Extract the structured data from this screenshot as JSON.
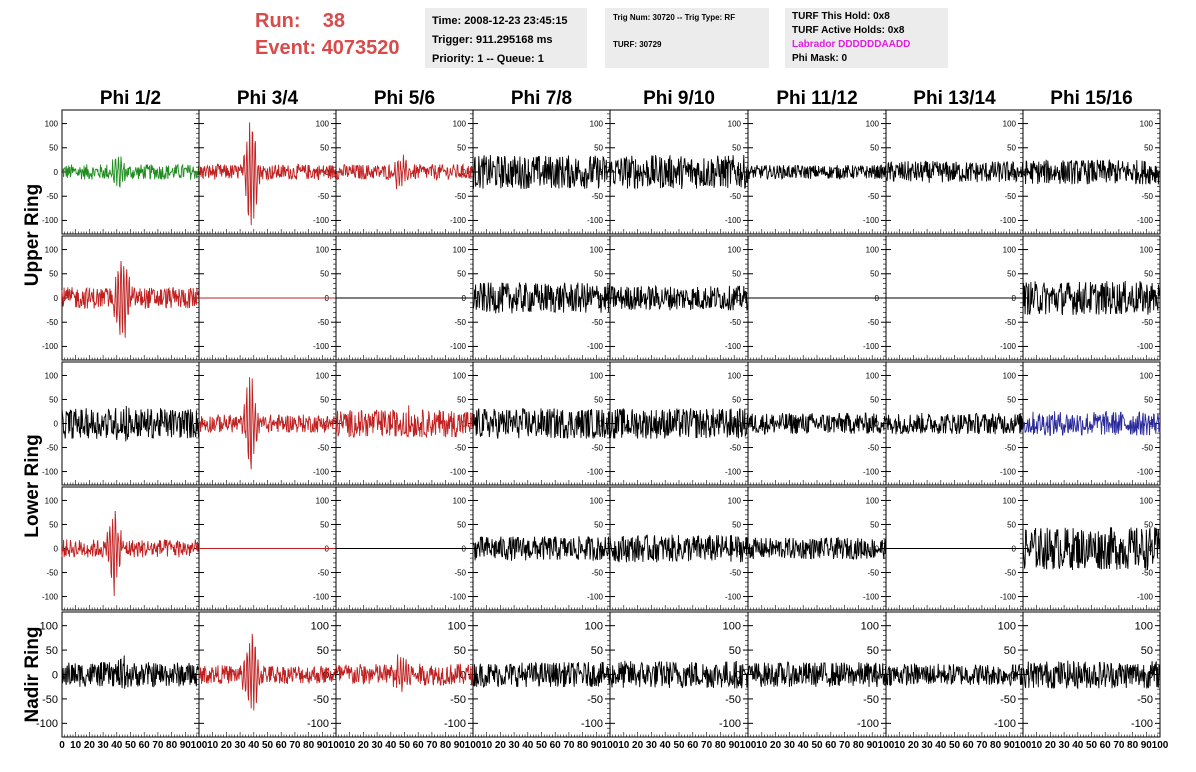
{
  "header": {
    "run_label": "Run:",
    "run_value": "38",
    "event_label": "Event:",
    "event_value": "4073520"
  },
  "info_box_1": {
    "time": "Time: 2008-12-23 23:45:15",
    "trigger": "Trigger: 911.295168 ms",
    "priority": "Priority: 1 -- Queue: 1"
  },
  "info_box_2": {
    "trig": "Trig Num: 30720 -- Trig Type: RF",
    "turf": "TURF: 30729"
  },
  "info_box_3": {
    "hold": "TURF This Hold: 0x8",
    "active": "TURF Active Holds: 0x8",
    "labrador": "Labrador DDDDDDAADD",
    "phimask": "Phi Mask: 0"
  },
  "colors": {
    "run_text": "#d94a4a",
    "labrador_text": "#e01ee0",
    "trace_black": "#000000",
    "trace_red": "#c02020",
    "trace_green": "#1e8c1e",
    "trace_blue": "#2a2a9c",
    "info_bg": "#ececec"
  },
  "chart_data": {
    "type": "line",
    "columns": [
      "Phi 1/2",
      "Phi 3/4",
      "Phi 5/6",
      "Phi 7/8",
      "Phi 9/10",
      "Phi 11/12",
      "Phi 13/14",
      "Phi 15/16"
    ],
    "rows": [
      "Upper Ring",
      "Lower Ring",
      "Nadir Ring"
    ],
    "xlim": [
      0,
      100
    ],
    "ylim": [
      -128,
      128
    ],
    "x_ticks": [
      0,
      10,
      20,
      30,
      40,
      50,
      60,
      70,
      80,
      90,
      100
    ],
    "x_tick_labels": [
      "0",
      "10",
      "20",
      "30",
      "40",
      "50",
      "60",
      "70",
      "80",
      "90",
      "100"
    ],
    "y_ticks": [
      -100,
      -50,
      0,
      50,
      100
    ],
    "y_tick_labels": [
      "-100",
      "-50",
      "0",
      "50",
      "100"
    ],
    "panels": [
      [
        {
          "color": "green",
          "amp": 10,
          "pulse": 40,
          "center": 40
        },
        {
          "color": "red",
          "amp": 10,
          "pulse": 125,
          "center": 38
        },
        {
          "color": "red",
          "amp": 10,
          "pulse": 40,
          "center": 46
        },
        {
          "color": "black",
          "amp": 22,
          "pulse": 0,
          "center": 50
        },
        {
          "color": "black",
          "amp": 22,
          "pulse": 0,
          "center": 50
        },
        {
          "color": "black",
          "amp": 9,
          "pulse": 0,
          "center": 50
        },
        {
          "color": "black",
          "amp": 14,
          "pulse": 0,
          "center": 50
        },
        {
          "color": "black",
          "amp": 16,
          "pulse": 0,
          "center": 50
        }
      ],
      [
        {
          "color": "red",
          "amp": 14,
          "pulse": 110,
          "center": 44
        },
        {
          "color": "red",
          "amp": 0,
          "pulse": 0,
          "center": 50
        },
        {
          "color": "black",
          "amp": 0,
          "pulse": 0,
          "center": 50
        },
        {
          "color": "black",
          "amp": 20,
          "pulse": 0,
          "center": 50
        },
        {
          "color": "black",
          "amp": 16,
          "pulse": 0,
          "center": 50
        },
        {
          "color": "black",
          "amp": 0,
          "pulse": 0,
          "center": 50
        },
        {
          "color": "black",
          "amp": 0,
          "pulse": 0,
          "center": 50
        },
        {
          "color": "black",
          "amp": 22,
          "pulse": 0,
          "center": 50
        }
      ],
      [
        {
          "color": "black",
          "amp": 20,
          "pulse": 30,
          "center": 46
        },
        {
          "color": "red",
          "amp": 12,
          "pulse": 100,
          "center": 38
        },
        {
          "color": "red",
          "amp": 18,
          "pulse": 25,
          "center": 50
        },
        {
          "color": "black",
          "amp": 20,
          "pulse": 0,
          "center": 50
        },
        {
          "color": "black",
          "amp": 20,
          "pulse": 0,
          "center": 50
        },
        {
          "color": "black",
          "amp": 14,
          "pulse": 0,
          "center": 50
        },
        {
          "color": "black",
          "amp": 14,
          "pulse": 0,
          "center": 50
        },
        {
          "color": "blue",
          "amp": 16,
          "pulse": 0,
          "center": 50
        }
      ],
      [
        {
          "color": "red",
          "amp": 12,
          "pulse": 90,
          "center": 38
        },
        {
          "color": "red",
          "amp": 0,
          "pulse": 0,
          "center": 50
        },
        {
          "color": "black",
          "amp": 0,
          "pulse": 0,
          "center": 50
        },
        {
          "color": "black",
          "amp": 16,
          "pulse": 0,
          "center": 50
        },
        {
          "color": "black",
          "amp": 18,
          "pulse": 0,
          "center": 50
        },
        {
          "color": "black",
          "amp": 14,
          "pulse": 0,
          "center": 50
        },
        {
          "color": "black",
          "amp": 0,
          "pulse": 0,
          "center": 50
        },
        {
          "color": "black",
          "amp": 28,
          "pulse": 0,
          "center": 50
        }
      ],
      [
        {
          "color": "black",
          "amp": 16,
          "pulse": 30,
          "center": 46
        },
        {
          "color": "red",
          "amp": 12,
          "pulse": 100,
          "center": 38
        },
        {
          "color": "red",
          "amp": 14,
          "pulse": 40,
          "center": 48
        },
        {
          "color": "black",
          "amp": 16,
          "pulse": 0,
          "center": 50
        },
        {
          "color": "black",
          "amp": 18,
          "pulse": 0,
          "center": 50
        },
        {
          "color": "black",
          "amp": 16,
          "pulse": 0,
          "center": 50
        },
        {
          "color": "black",
          "amp": 14,
          "pulse": 0,
          "center": 50
        },
        {
          "color": "black",
          "amp": 18,
          "pulse": 0,
          "center": 50
        }
      ]
    ]
  }
}
